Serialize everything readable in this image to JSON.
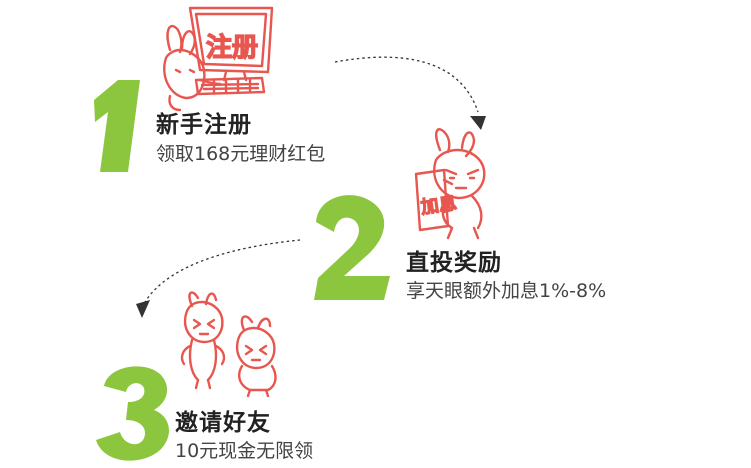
{
  "accent_color": "#8cc63e",
  "illustration_color": "#e8574f",
  "arrow_color": "#333333",
  "steps": [
    {
      "number": "1",
      "title": "新手注册",
      "desc": "领取168元理财红包",
      "illustration": "rabbit-at-computer",
      "screen_text": "注册"
    },
    {
      "number": "2",
      "title": "直投奖励",
      "desc": "享天眼额外加息1%-8%",
      "illustration": "rabbit-holding-sign",
      "sign_text": "加息"
    },
    {
      "number": "3",
      "title": "邀请好友",
      "desc": "10元现金无限领",
      "illustration": "two-rabbits"
    }
  ]
}
